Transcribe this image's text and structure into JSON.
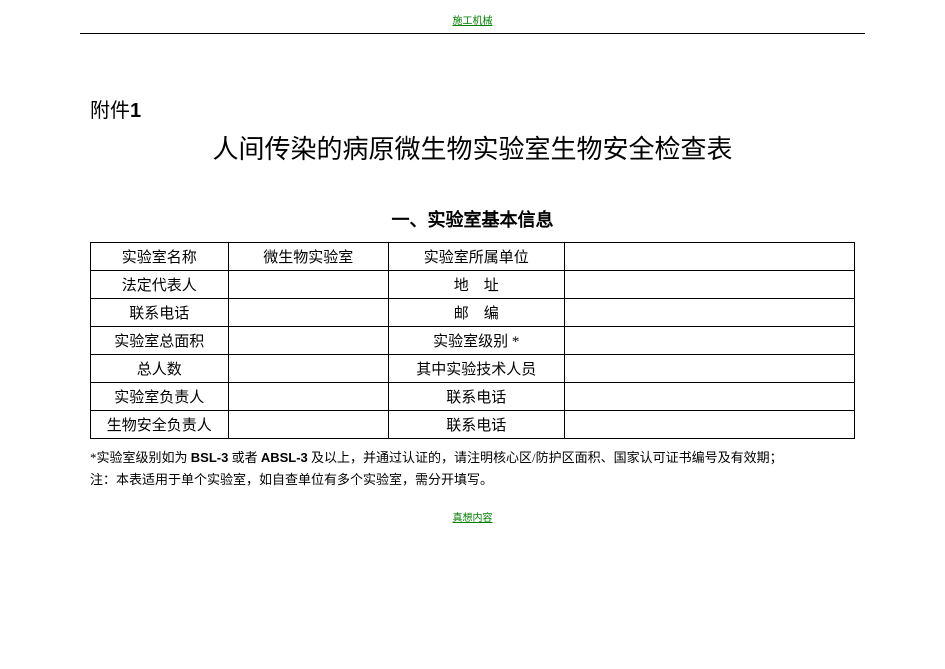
{
  "header_link": "施工机械",
  "attachment_label_prefix": "附件",
  "attachment_label_num": "1",
  "main_title": "人间传染的病原微生物实验室生物安全检查表",
  "section_title": "一、实验室基本信息",
  "table": {
    "r1": {
      "l1": "实验室名称",
      "v1": "微生物实验室",
      "l2": "实验室所属单位",
      "v2": ""
    },
    "r2": {
      "l1": "法定代表人",
      "v1": "",
      "l2": "地　址",
      "v2": ""
    },
    "r3": {
      "l1": "联系电话",
      "v1": "",
      "l2": "邮　编",
      "v2": ""
    },
    "r4": {
      "l1": "实验室总面积",
      "v1": "",
      "l2": "实验室级别 *",
      "v2": ""
    },
    "r5": {
      "l1": "总人数",
      "v1": "",
      "l2": "其中实验技术人员",
      "v2": ""
    },
    "r6": {
      "l1": "实验室负责人",
      "v1": "",
      "l2": "联系电话",
      "v2": ""
    },
    "r7": {
      "l1": "生物安全负责人",
      "v1": "",
      "l2": "联系电话",
      "v2": ""
    }
  },
  "footnote": {
    "line1_pre": "*实验室级别如为 ",
    "line1_b1": "BSL-3",
    "line1_mid1": " 或者 ",
    "line1_b2": "ABSL-3",
    "line1_post": " 及以上，并通过认证的，请注明核心区/防护区面积、国家认可证书编号及有效期；",
    "line2": "注：本表适用于单个实验室，如自查单位有多个实验室，需分开填写。"
  },
  "footer_link": "真想内容",
  "colors": {
    "link": "#008000",
    "text": "#000000",
    "border": "#000000",
    "background": "#ffffff"
  }
}
